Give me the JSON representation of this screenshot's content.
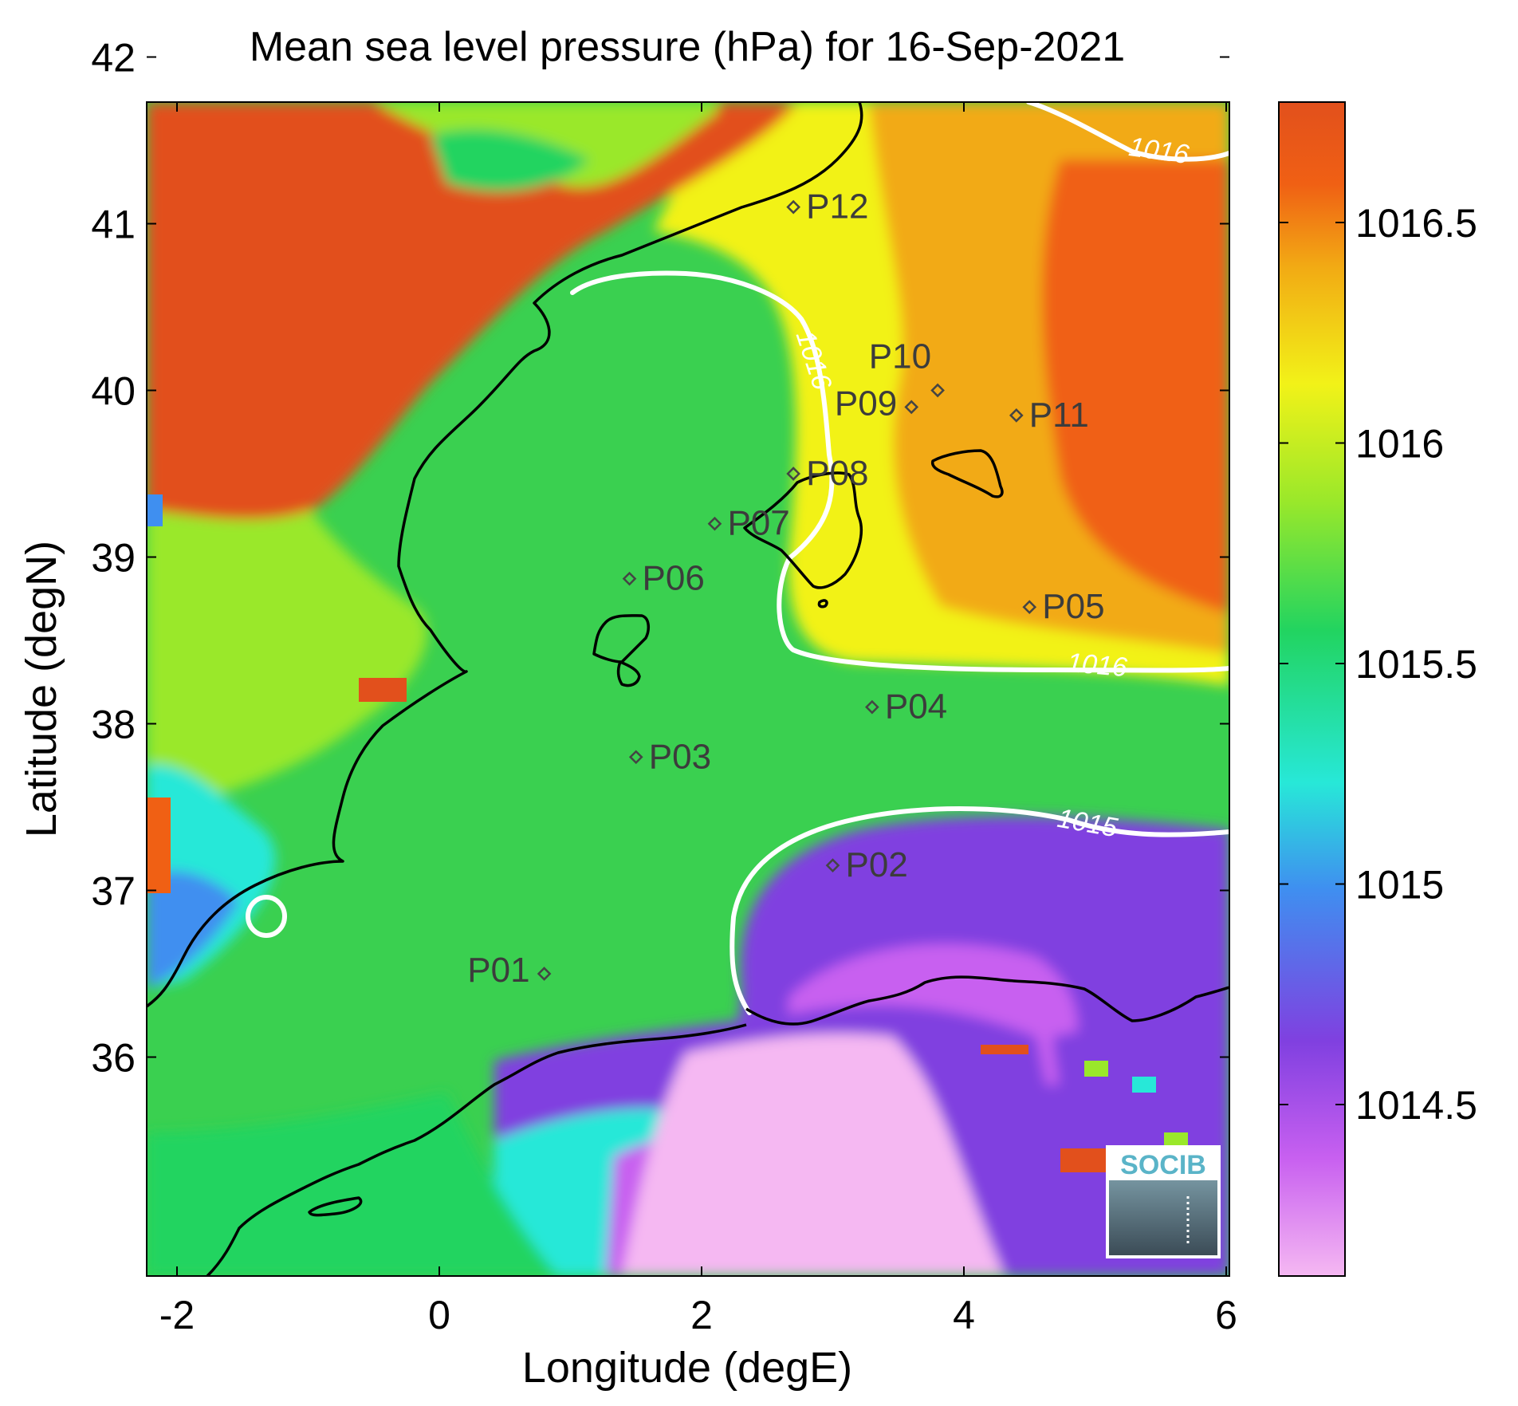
{
  "title": "Mean sea level pressure (hPa) for 16-Sep-2021",
  "xlabel": "Longitude (degE)",
  "ylabel": "Latitude (degN)",
  "x_ticks": [
    "-2",
    "0",
    "2",
    "4",
    "6"
  ],
  "y_ticks": [
    "36",
    "37",
    "38",
    "39",
    "40",
    "41",
    "42"
  ],
  "colorbar": {
    "ticks": [
      "1014.5",
      "1015",
      "1015.5",
      "1016",
      "1016.5"
    ],
    "colors": [
      "#f5b8f2",
      "#c860f0",
      "#8040e0",
      "#3f8ff0",
      "#27e8d8",
      "#22d460",
      "#9ae82a",
      "#f2f218",
      "#f2aa14",
      "#f06014",
      "#e2501c"
    ]
  },
  "contour_labels": [
    "1016",
    "1016",
    "1016",
    "1015"
  ],
  "stations": [
    {
      "id": "P01",
      "lon": 0.8,
      "lat": 36.5
    },
    {
      "id": "P02",
      "lon": 3.0,
      "lat": 37.15
    },
    {
      "id": "P03",
      "lon": 1.5,
      "lat": 37.8
    },
    {
      "id": "P04",
      "lon": 3.3,
      "lat": 38.1
    },
    {
      "id": "P05",
      "lon": 4.5,
      "lat": 38.7
    },
    {
      "id": "P06",
      "lon": 1.45,
      "lat": 38.87
    },
    {
      "id": "P07",
      "lon": 2.1,
      "lat": 39.2
    },
    {
      "id": "P08",
      "lon": 2.7,
      "lat": 39.5
    },
    {
      "id": "P09",
      "lon": 3.6,
      "lat": 39.9
    },
    {
      "id": "P10",
      "lon": 3.8,
      "lat": 40.0
    },
    {
      "id": "P11",
      "lon": 4.4,
      "lat": 39.85
    },
    {
      "id": "P12",
      "lon": 2.7,
      "lat": 41.1
    }
  ],
  "logo_text": "SOCIB"
}
